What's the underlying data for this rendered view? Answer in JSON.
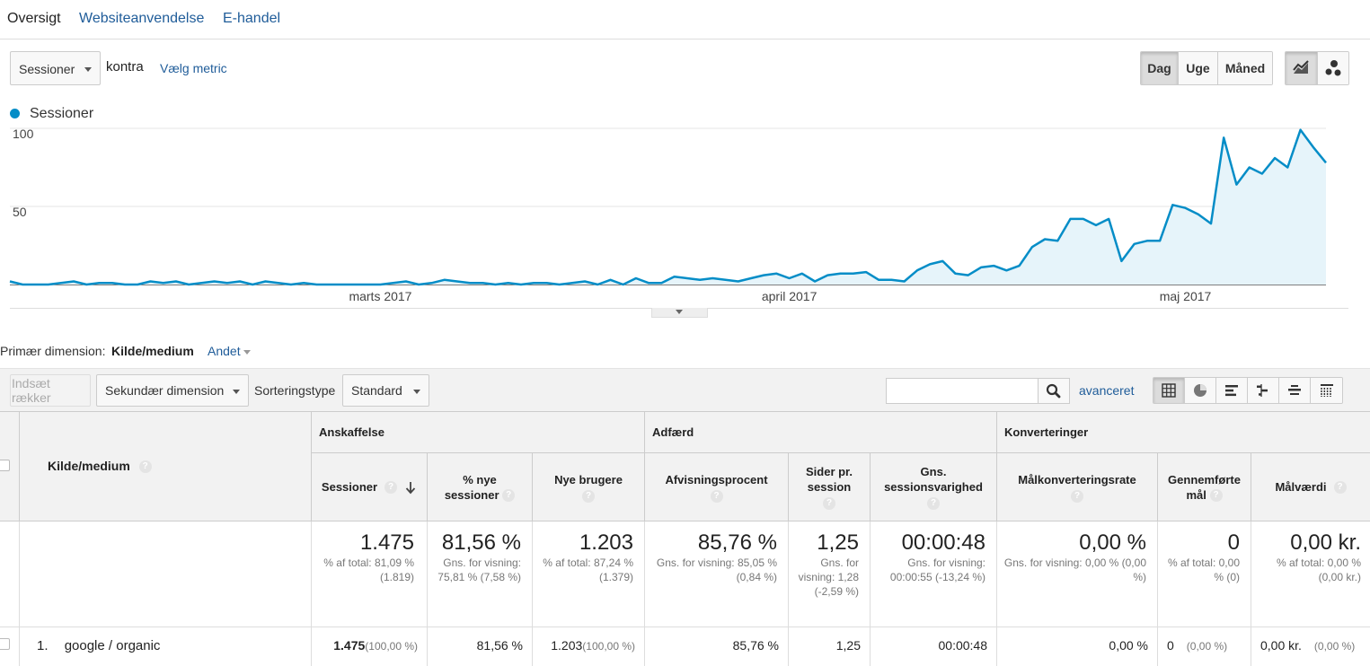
{
  "tabs": [
    "Oversigt",
    "Websiteanvendelse",
    "E-handel"
  ],
  "controls": {
    "metric": "Sessioner",
    "versus": "kontra",
    "choose_metric": "Vælg metric",
    "periods": [
      "Dag",
      "Uge",
      "Måned"
    ],
    "active_period": "Dag"
  },
  "legend": {
    "label": "Sessioner",
    "color": "#058dc7"
  },
  "chart_data": {
    "type": "area",
    "series": [
      {
        "name": "Sessioner",
        "values": [
          2,
          0,
          0,
          0,
          1,
          2,
          0,
          1,
          1,
          0,
          0,
          2,
          1,
          2,
          0,
          1,
          2,
          1,
          2,
          0,
          2,
          1,
          0,
          1,
          0,
          0,
          0,
          0,
          0,
          0,
          1,
          2,
          0,
          1,
          3,
          2,
          1,
          1,
          0,
          1,
          0,
          1,
          1,
          0,
          1,
          2,
          0,
          3,
          0,
          4,
          1,
          1,
          5,
          4,
          3,
          4,
          3,
          2,
          4,
          6,
          7,
          4,
          7,
          2,
          6,
          7,
          7,
          8,
          3,
          3,
          2,
          9,
          13,
          15,
          7,
          6,
          11,
          12,
          9,
          12,
          24,
          29,
          28,
          42,
          42,
          38,
          42,
          15,
          26,
          28,
          28,
          51,
          49,
          45,
          39,
          94,
          64,
          75,
          71,
          81,
          75,
          99,
          88,
          78
        ]
      }
    ],
    "x_tick_labels": [
      "marts 2017",
      "april 2017",
      "maj 2017"
    ],
    "y_tick_labels": [
      "100",
      "50"
    ],
    "ylim": [
      0,
      100
    ]
  },
  "primary_dimension": {
    "label": "Primær dimension:",
    "value": "Kilde/medium",
    "other": "Andet"
  },
  "toolbar": {
    "insert_rows": "Indsæt rækker",
    "secondary_dimension": "Sekundær dimension",
    "sort_type_label": "Sorteringstype",
    "sort_type_value": "Standard",
    "search_placeholder": "",
    "advanced": "avanceret"
  },
  "table": {
    "dimension_header": "Kilde/medium",
    "groups": [
      "Anskaffelse",
      "Adfærd",
      "Konverteringer"
    ],
    "columns": [
      "Sessioner",
      "% nye sessioner",
      "Nye brugere",
      "Afvisningsprocent",
      "Sider pr. session",
      "Gns. sessionsvarighed",
      "Målkonverteringsrate",
      "Gennemførte mål",
      "Målværdi"
    ],
    "totals": [
      {
        "value": "1.475",
        "sub": "% af total: 81,09 % (1.819)"
      },
      {
        "value": "81,56 %",
        "sub": "Gns. for visning: 75,81 % (7,58 %)"
      },
      {
        "value": "1.203",
        "sub": "% af total: 87,24 % (1.379)"
      },
      {
        "value": "85,76 %",
        "sub": "Gns. for visning: 85,05 % (0,84 %)"
      },
      {
        "value": "1,25",
        "sub": "Gns. for visning: 1,28 (-2,59 %)"
      },
      {
        "value": "00:00:48",
        "sub": "Gns. for visning: 00:00:55 (-13,24 %)"
      },
      {
        "value": "0,00 %",
        "sub": "Gns. for visning: 0,00 % (0,00 %)"
      },
      {
        "value": "0",
        "sub": "% af total: 0,00 % (0)"
      },
      {
        "value": "0,00 kr.",
        "sub": "% af total: 0,00 % (0,00 kr.)"
      }
    ],
    "rows": [
      {
        "index": "1.",
        "dimension": "google / organic",
        "cells": [
          {
            "value": "1.475",
            "pct": "(100,00 %)"
          },
          {
            "value": "81,56 %",
            "pct": ""
          },
          {
            "value": "1.203",
            "pct": "(100,00 %)"
          },
          {
            "value": "85,76 %",
            "pct": ""
          },
          {
            "value": "1,25",
            "pct": ""
          },
          {
            "value": "00:00:48",
            "pct": ""
          },
          {
            "value": "0,00 %",
            "pct": ""
          },
          {
            "value": "0",
            "pct": "(0,00 %)"
          },
          {
            "value": "0,00 kr.",
            "pct": "(0,00 %)"
          }
        ]
      }
    ]
  }
}
